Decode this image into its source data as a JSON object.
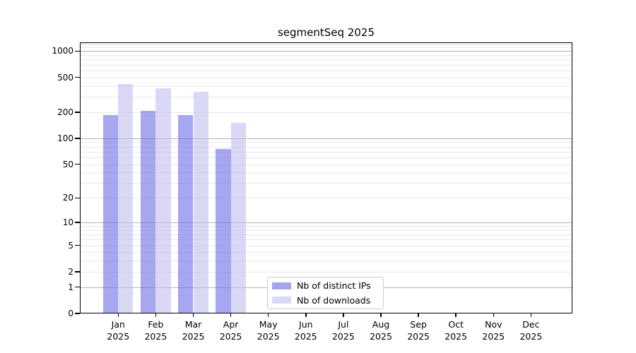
{
  "chart_data": {
    "type": "bar",
    "title": "segmentSeq 2025",
    "yscale": "log1p",
    "ylim": [
      0,
      1260
    ],
    "grid": "both",
    "legend_position": "bottom-center-inside",
    "x_axis": {
      "months": [
        "Jan",
        "Feb",
        "Mar",
        "Apr",
        "May",
        "Jun",
        "Jul",
        "Aug",
        "Sep",
        "Oct",
        "Nov",
        "Dec"
      ],
      "year": "2025"
    },
    "y_axis": {
      "ticks": [
        0,
        1,
        2,
        5,
        10,
        20,
        50,
        100,
        200,
        500,
        1000
      ]
    },
    "gridlines": {
      "major": [
        1,
        10,
        100,
        1000
      ],
      "minor": [
        2,
        3,
        4,
        5,
        6,
        7,
        8,
        9,
        20,
        30,
        40,
        50,
        60,
        70,
        80,
        90,
        200,
        300,
        400,
        500,
        600,
        700,
        800,
        900,
        1100,
        1200
      ]
    },
    "series": [
      {
        "key": "distinct_ips",
        "name": "Nb of distinct IPs",
        "color": "#a6a6f0",
        "fill": "rgba(107,107,232,0.6)",
        "values": [
          185,
          205,
          185,
          75,
          null,
          null,
          null,
          null,
          null,
          null,
          null,
          null
        ]
      },
      {
        "key": "downloads",
        "name": "Nb of downloads",
        "color": "#d9d9f6",
        "fill": "rgba(192,192,240,0.6)",
        "values": [
          420,
          375,
          340,
          150,
          null,
          null,
          null,
          null,
          null,
          null,
          null,
          null
        ]
      }
    ]
  }
}
